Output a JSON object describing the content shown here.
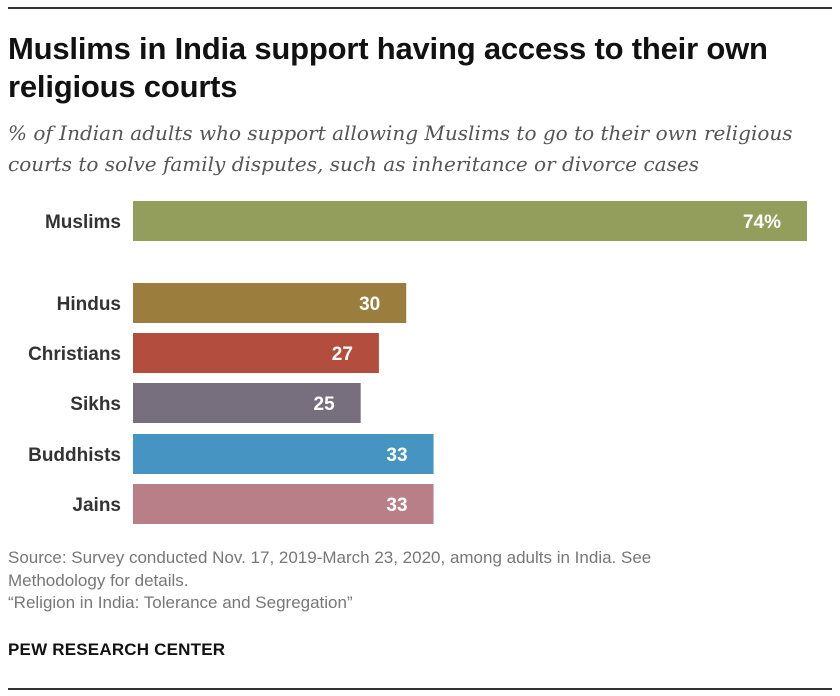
{
  "title": "Muslims in India support having access to their own religious courts",
  "subtitle": "% of Indian adults who support allowing Muslims to go to their own religious courts to solve family disputes, such as inheritance or divorce cases",
  "source": {
    "line1": "Source: Survey conducted Nov. 17, 2019-March 23, 2020, among adults in India. See",
    "line2": "Methodology for details.",
    "line3": "“Religion in India: Tolerance and Segregation”"
  },
  "credit": "PEW RESEARCH CENTER",
  "chart_data": {
    "type": "bar",
    "orientation": "horizontal",
    "title": "Muslims in India support having access to their own religious courts",
    "xlabel": "",
    "ylabel": "",
    "xlim": [
      0,
      74
    ],
    "grid": false,
    "categories": [
      "Muslims",
      "Hindus",
      "Christians",
      "Sikhs",
      "Buddhists",
      "Jains"
    ],
    "values": [
      74,
      30,
      27,
      25,
      33,
      33
    ],
    "value_labels": [
      "74%",
      "30",
      "27",
      "25",
      "33",
      "33"
    ],
    "colors": [
      "#949e5c",
      "#9b7e3e",
      "#b34d3e",
      "#786f7e",
      "#4594c1",
      "#b97f88"
    ]
  }
}
